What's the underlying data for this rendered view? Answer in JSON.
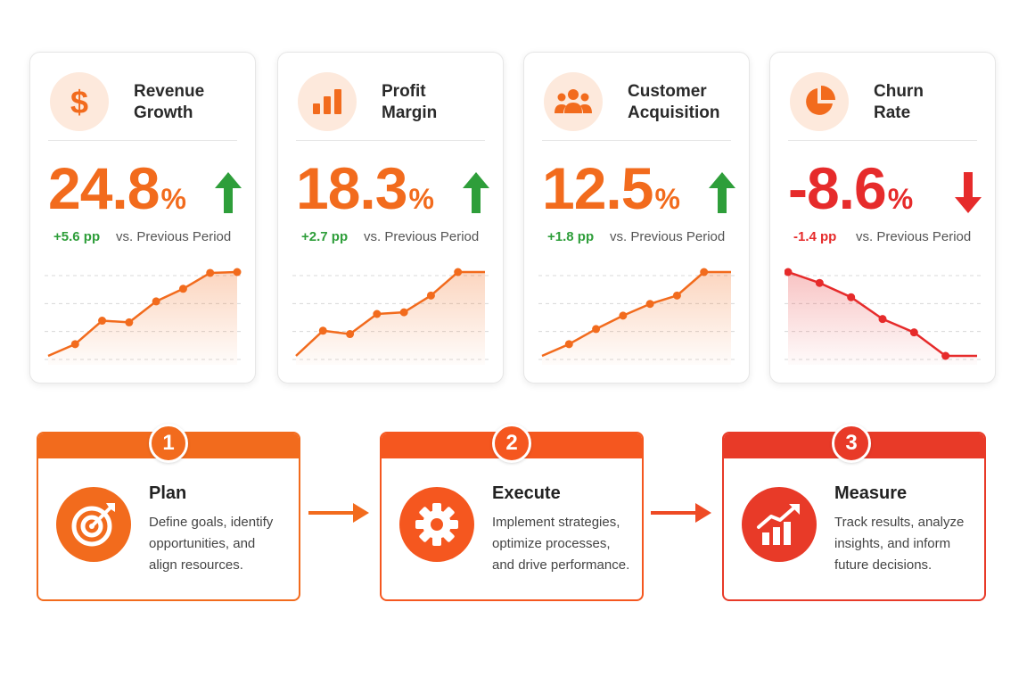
{
  "colors": {
    "orange": "#f26b1d",
    "red": "#e62b2b",
    "green": "#2e9e3a",
    "icon_bg": "#fde9dc"
  },
  "kpis": [
    {
      "id": "revenue",
      "title_lines": [
        "Revenue",
        "Growth"
      ],
      "icon": "dollar-icon",
      "value": "24.8",
      "unit": "%",
      "direction": "up",
      "delta": "+5.6 pp",
      "compare": "vs. Previous Period"
    },
    {
      "id": "profit",
      "title_lines": [
        "Profit",
        "Margin"
      ],
      "icon": "bar-chart-icon",
      "value": "18.3",
      "unit": "%",
      "direction": "up",
      "delta": "+2.7 pp",
      "compare": "vs. Previous Period"
    },
    {
      "id": "acquisition",
      "title_lines": [
        "Customer",
        "Acquisition"
      ],
      "icon": "users-icon",
      "value": "12.5",
      "unit": "%",
      "direction": "up",
      "delta": "+1.8 pp",
      "compare": "vs. Previous Period"
    },
    {
      "id": "churn",
      "title_lines": [
        "Churn",
        "Rate"
      ],
      "icon": "pie-chart-icon",
      "value": "-8.6",
      "unit": "%",
      "direction": "down",
      "delta": "-1.4 pp",
      "compare": "vs. Previous Period"
    }
  ],
  "chart_data": [
    {
      "type": "line",
      "series_id": "revenue",
      "x": [
        1,
        2,
        3,
        4,
        5,
        6,
        7,
        8
      ],
      "values": [
        0,
        14,
        42,
        40,
        65,
        80,
        99,
        100
      ],
      "ylim": [
        0,
        100
      ],
      "grid": true,
      "fill": "area"
    },
    {
      "type": "line",
      "series_id": "profit",
      "x": [
        1,
        2,
        3,
        4,
        5,
        6,
        7,
        8
      ],
      "values": [
        0,
        30,
        26,
        50,
        52,
        72,
        100,
        100
      ],
      "ylim": [
        0,
        100
      ],
      "grid": true,
      "fill": "area"
    },
    {
      "type": "line",
      "series_id": "acquisition",
      "x": [
        1,
        2,
        3,
        4,
        5,
        6,
        7,
        8
      ],
      "values": [
        0,
        14,
        32,
        48,
        62,
        72,
        100,
        100
      ],
      "ylim": [
        0,
        100
      ],
      "grid": true,
      "fill": "area"
    },
    {
      "type": "line",
      "series_id": "churn",
      "x": [
        1,
        2,
        3,
        4,
        5,
        6,
        7
      ],
      "values": [
        100,
        87,
        70,
        44,
        28,
        0,
        0
      ],
      "ylim": [
        0,
        100
      ],
      "grid": true,
      "fill": "area"
    }
  ],
  "steps": [
    {
      "number": "1",
      "title": "Plan",
      "icon": "target-icon",
      "desc_lines": [
        "Define goals, identify",
        "opportunities, and",
        "align resources."
      ]
    },
    {
      "number": "2",
      "title": "Execute",
      "icon": "gear-icon",
      "desc_lines": [
        "Implement strategies,",
        "optimize processes,",
        "and drive performance."
      ]
    },
    {
      "number": "3",
      "title": "Measure",
      "icon": "growth-chart-icon",
      "desc_lines": [
        "Track results, analyze",
        "insights, and inform",
        "future decisions."
      ]
    }
  ]
}
